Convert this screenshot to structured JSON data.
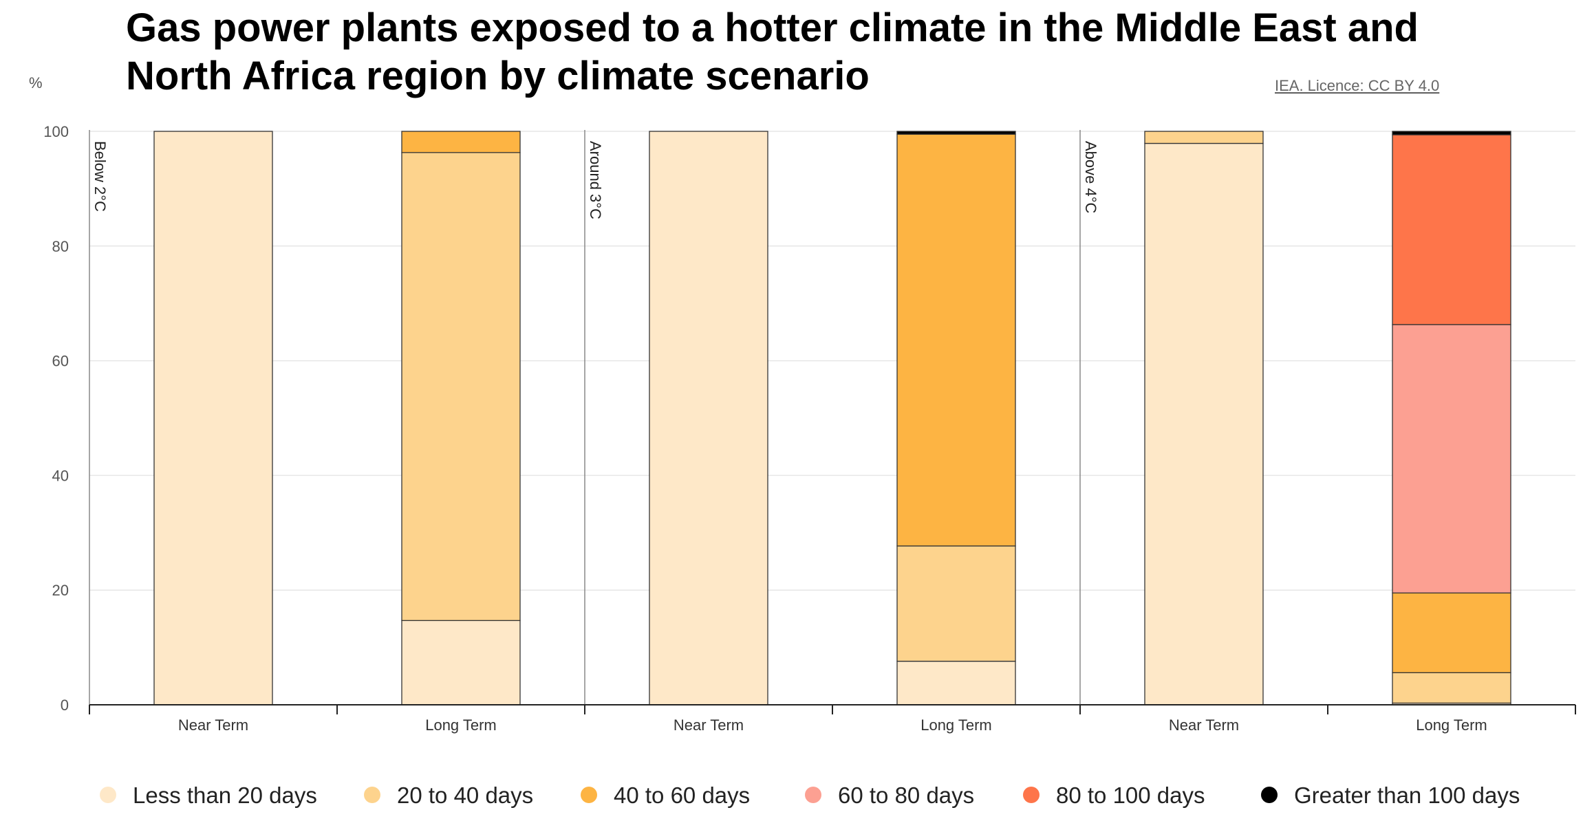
{
  "chart_data": {
    "type": "bar",
    "stacked": true,
    "title": "Gas power plants exposed to a hotter climate in the Middle East and North Africa region by climate scenario",
    "title_lines": [
      "Gas power plants exposed to a hotter climate in the Middle East and",
      "North Africa region by climate scenario"
    ],
    "ylabel": "%",
    "credit": "IEA. Licence: CC BY 4.0",
    "ylim": [
      0,
      100
    ],
    "yticks": [
      "0",
      "20",
      "40",
      "60",
      "80",
      "100"
    ],
    "grid": true,
    "legend_position": "bottom",
    "groups": [
      "Below 2°C",
      "Around 3°C",
      "Above 4°C"
    ],
    "categories": [
      "Near Term",
      "Long Term",
      "Near Term",
      "Long Term",
      "Near Term",
      "Long Term"
    ],
    "series": [
      {
        "name": "Less than 20 days",
        "color": "#fee8c8",
        "values": [
          100,
          14.7,
          100,
          7.6,
          97.9,
          0.3
        ]
      },
      {
        "name": "20 to 40 days",
        "color": "#fdd38d",
        "values": [
          0,
          81.6,
          0,
          20.1,
          2.1,
          5.3
        ]
      },
      {
        "name": "40 to 60 days",
        "color": "#fdb443",
        "values": [
          0,
          3.7,
          0,
          71.8,
          0,
          13.9
        ]
      },
      {
        "name": "60 to 80 days",
        "color": "#fca092",
        "values": [
          0,
          0,
          0,
          0,
          0,
          46.8
        ]
      },
      {
        "name": "80 to 100 days",
        "color": "#fe754a",
        "values": [
          0,
          0,
          0,
          0,
          0,
          33.1
        ]
      },
      {
        "name": "Greater than 100 days",
        "color": "#000000",
        "values": [
          0,
          0,
          0,
          0.5,
          0,
          0.6
        ]
      }
    ]
  }
}
